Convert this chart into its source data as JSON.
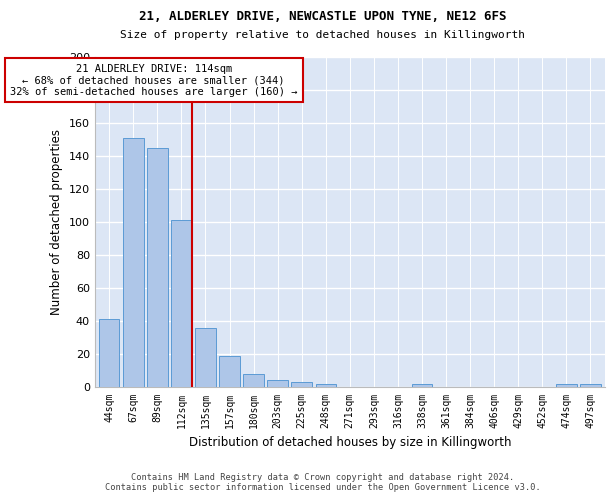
{
  "title1": "21, ALDERLEY DRIVE, NEWCASTLE UPON TYNE, NE12 6FS",
  "title2": "Size of property relative to detached houses in Killingworth",
  "xlabel": "Distribution of detached houses by size in Killingworth",
  "ylabel": "Number of detached properties",
  "footer1": "Contains HM Land Registry data © Crown copyright and database right 2024.",
  "footer2": "Contains public sector information licensed under the Open Government Licence v3.0.",
  "annotation_line1": "21 ALDERLEY DRIVE: 114sqm",
  "annotation_line2": "← 68% of detached houses are smaller (344)",
  "annotation_line3": "32% of semi-detached houses are larger (160) →",
  "bar_color": "#aec6e8",
  "bar_edge_color": "#5b9bd5",
  "highlight_line_color": "#cc0000",
  "annotation_box_color": "#cc0000",
  "background_color": "#dce6f5",
  "categories": [
    "44sqm",
    "67sqm",
    "89sqm",
    "112sqm",
    "135sqm",
    "157sqm",
    "180sqm",
    "203sqm",
    "225sqm",
    "248sqm",
    "271sqm",
    "293sqm",
    "316sqm",
    "338sqm",
    "361sqm",
    "384sqm",
    "406sqm",
    "429sqm",
    "452sqm",
    "474sqm",
    "497sqm"
  ],
  "values": [
    41,
    151,
    145,
    101,
    36,
    19,
    8,
    4,
    3,
    2,
    0,
    0,
    0,
    2,
    0,
    0,
    0,
    0,
    0,
    2,
    2
  ],
  "highlight_index": 3,
  "ylim": [
    0,
    200
  ],
  "yticks": [
    0,
    20,
    40,
    60,
    80,
    100,
    120,
    140,
    160,
    180,
    200
  ]
}
